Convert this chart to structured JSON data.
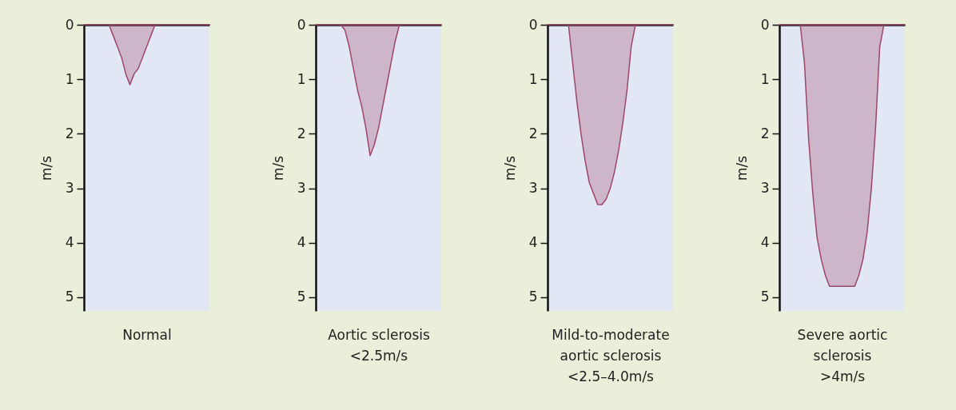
{
  "chart_data": [
    {
      "type": "area",
      "xlabel": "Normal",
      "ylabel": "m/s",
      "categories": [
        null,
        null,
        null,
        null,
        null,
        null,
        null,
        null,
        null,
        null,
        null,
        null,
        null,
        null,
        null,
        null,
        null,
        null,
        null,
        null,
        null,
        null,
        null,
        null,
        null,
        null,
        null,
        null,
        null,
        null,
        null
      ],
      "ylim": [
        5.25,
        0
      ],
      "yticks": [
        0,
        1,
        2,
        3,
        4,
        5
      ],
      "tick_labels": "y",
      "series": [
        {
          "color": "#a0456a",
          "values": [
            0,
            0,
            0,
            0,
            0,
            0,
            0,
            0.2,
            0.4,
            0.6,
            0.9,
            1.1,
            0.9,
            0.8,
            0.6,
            0.4,
            0.2,
            0,
            0,
            0,
            0,
            0,
            0,
            0,
            0,
            0,
            0,
            0,
            0,
            0,
            0
          ]
        }
      ]
    },
    {
      "type": "area",
      "xlabel": "Aortic sclerosis\n<2.5m/s",
      "ylabel": "m/s",
      "categories": [
        null,
        null,
        null,
        null,
        null,
        null,
        null,
        null,
        null,
        null,
        null,
        null,
        null,
        null,
        null,
        null,
        null,
        null,
        null,
        null,
        null,
        null,
        null,
        null,
        null,
        null,
        null,
        null,
        null,
        null,
        null
      ],
      "ylim": [
        5.25,
        0
      ],
      "yticks": [
        0,
        1,
        2,
        3,
        4,
        5
      ],
      "tick_labels": "y",
      "series": [
        {
          "color": "#a0456a",
          "values": [
            0,
            0,
            0,
            0,
            0,
            0,
            0,
            0.1,
            0.4,
            0.8,
            1.2,
            1.5,
            1.9,
            2.4,
            2.2,
            1.9,
            1.5,
            1.1,
            0.7,
            0.3,
            0,
            0,
            0,
            0,
            0,
            0,
            0,
            0,
            0,
            0,
            0
          ]
        }
      ]
    },
    {
      "type": "area",
      "xlabel": "Mild-to-moderate\naortic sclerosis\n<2.5–4.0m/s",
      "ylabel": "m/s",
      "categories": [
        null,
        null,
        null,
        null,
        null,
        null,
        null,
        null,
        null,
        null,
        null,
        null,
        null,
        null,
        null,
        null,
        null,
        null,
        null,
        null,
        null,
        null,
        null,
        null,
        null,
        null,
        null,
        null,
        null,
        null,
        null
      ],
      "ylim": [
        5.25,
        0
      ],
      "yticks": [
        0,
        1,
        2,
        3,
        4,
        5
      ],
      "tick_labels": "y",
      "series": [
        {
          "color": "#a0456a",
          "values": [
            0,
            0,
            0,
            0,
            0,
            0,
            0.7,
            1.4,
            2.0,
            2.5,
            2.9,
            3.1,
            3.3,
            3.3,
            3.2,
            3.0,
            2.7,
            2.3,
            1.8,
            1.2,
            0.4,
            0,
            0,
            0,
            0,
            0,
            0,
            0,
            0,
            0,
            0
          ]
        }
      ]
    },
    {
      "type": "area",
      "xlabel": "Severe aortic\nsclerosis\n>4m/s",
      "ylabel": "m/s",
      "categories": [
        null,
        null,
        null,
        null,
        null,
        null,
        null,
        null,
        null,
        null,
        null,
        null,
        null,
        null,
        null,
        null,
        null,
        null,
        null,
        null,
        null,
        null,
        null,
        null,
        null,
        null,
        null,
        null,
        null,
        null,
        null
      ],
      "ylim": [
        5.25,
        0
      ],
      "yticks": [
        0,
        1,
        2,
        3,
        4,
        5
      ],
      "tick_labels": "y",
      "series": [
        {
          "color": "#a0456a",
          "values": [
            0,
            0,
            0,
            0,
            0,
            0,
            0.7,
            2.1,
            3.1,
            3.9,
            4.3,
            4.6,
            4.8,
            4.8,
            4.8,
            4.8,
            4.8,
            4.8,
            4.8,
            4.6,
            4.3,
            3.8,
            3.0,
            1.9,
            0.4,
            0,
            0,
            0,
            0,
            0,
            0
          ]
        }
      ]
    }
  ]
}
